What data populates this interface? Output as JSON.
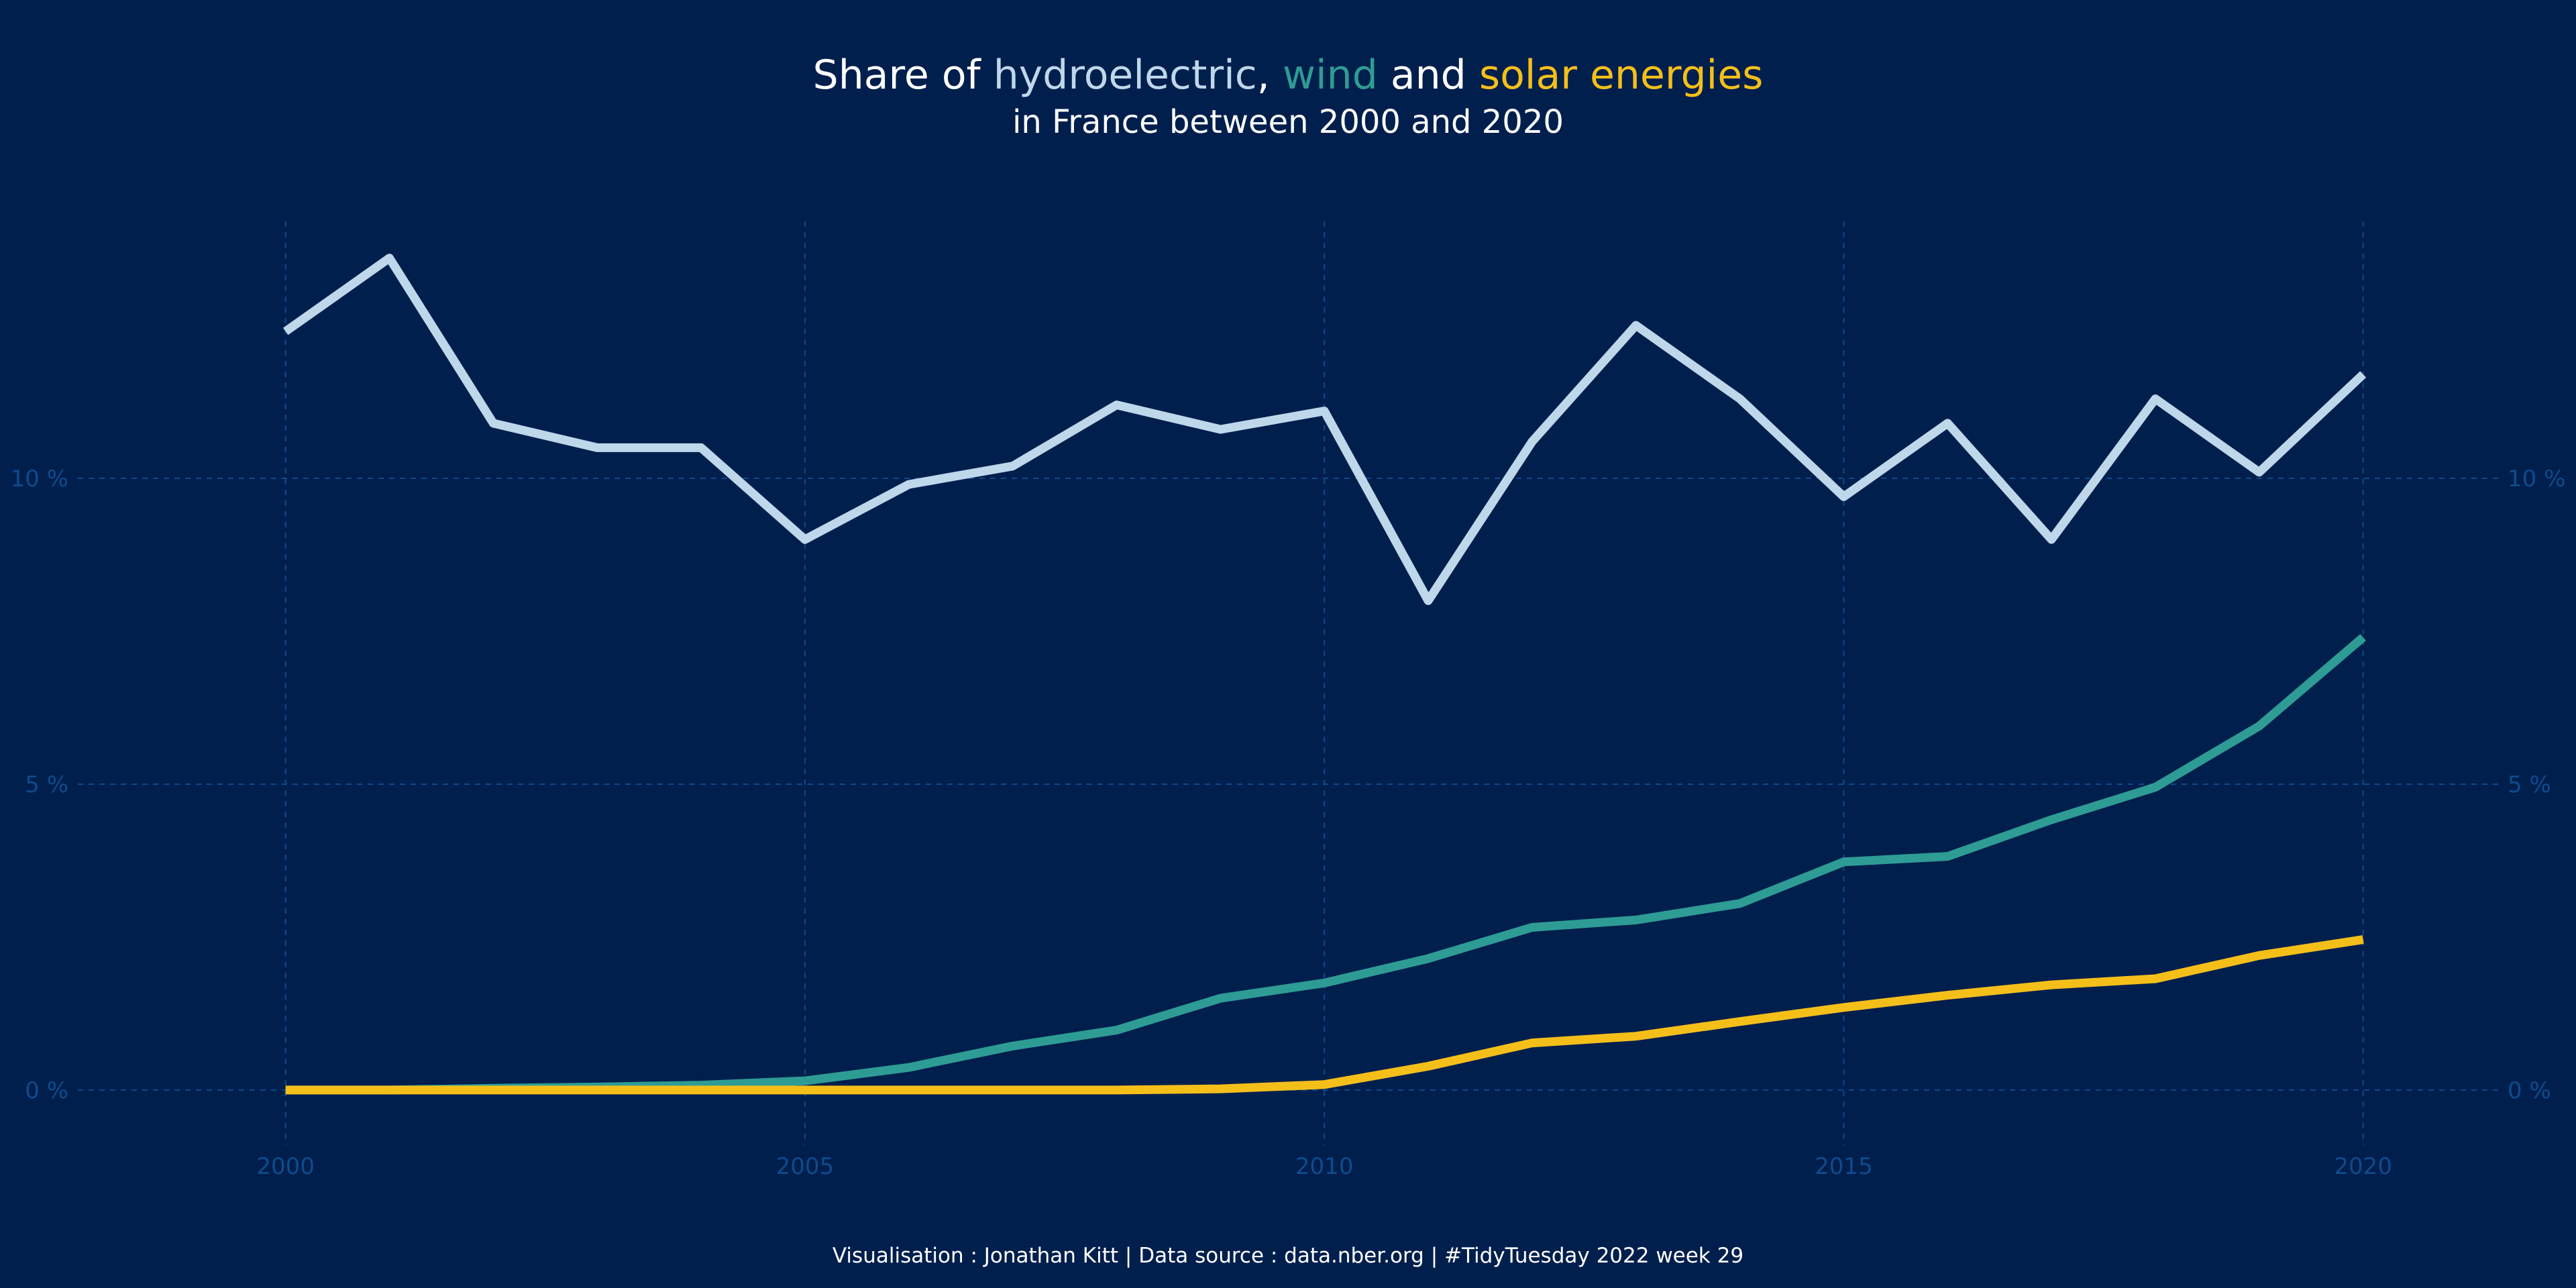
{
  "chart_data": {
    "type": "line",
    "title": {
      "prefix": "Share of ",
      "hydro": "hydroelectric",
      "comma": ", ",
      "wind": "wind",
      "and": " and ",
      "solar": "solar energies"
    },
    "subtitle": "in France between 2000 and 2020",
    "caption": "Visualisation : Jonathan Kitt | Data source : data.nber.org | #TidyTuesday 2022 week 29",
    "xlabel": "",
    "ylabel": "",
    "xlim": [
      1998,
      2021.3
    ],
    "ylim": [
      -0.9,
      14.2
    ],
    "grid": true,
    "legend": "none",
    "x_ticks": [
      2000,
      2005,
      2010,
      2015,
      2020
    ],
    "x_tick_labels": [
      "2000",
      "2005",
      "2010",
      "2015",
      "2020"
    ],
    "y_ticks": [
      0,
      5,
      10
    ],
    "y_tick_labels": [
      "0 %",
      "5 %",
      "10 %"
    ],
    "x": [
      2000,
      2001,
      2002,
      2003,
      2004,
      2005,
      2006,
      2007,
      2008,
      2009,
      2010,
      2011,
      2012,
      2013,
      2014,
      2015,
      2016,
      2017,
      2018,
      2019,
      2020
    ],
    "series": [
      {
        "key": "hydro",
        "color": "#BFD7EA",
        "values": [
          12.4,
          13.6,
          10.9,
          10.5,
          10.5,
          9.0,
          9.9,
          10.2,
          11.2,
          10.8,
          11.1,
          8.0,
          10.6,
          12.5,
          11.3,
          9.7,
          10.9,
          9.0,
          11.3,
          10.1,
          11.7
        ]
      },
      {
        "key": "wind",
        "color": "#2E9C94",
        "values": [
          0.0,
          0.0,
          0.03,
          0.05,
          0.08,
          0.15,
          0.37,
          0.72,
          0.98,
          1.5,
          1.75,
          2.15,
          2.66,
          2.78,
          3.05,
          3.73,
          3.82,
          4.42,
          4.95,
          5.95,
          7.4
        ]
      },
      {
        "key": "solar",
        "color": "#F5BF1A",
        "values": [
          0.0,
          0.0,
          0.0,
          0.0,
          0.0,
          0.0,
          0.0,
          0.0,
          0.0,
          0.02,
          0.09,
          0.39,
          0.77,
          0.88,
          1.12,
          1.35,
          1.55,
          1.72,
          1.82,
          2.2,
          2.46
        ]
      }
    ],
    "colors": {
      "background": "#001F4D",
      "grid": "#0E4B8C",
      "tick_label": "#0E4B8C",
      "text": "#FFFFFF"
    }
  }
}
